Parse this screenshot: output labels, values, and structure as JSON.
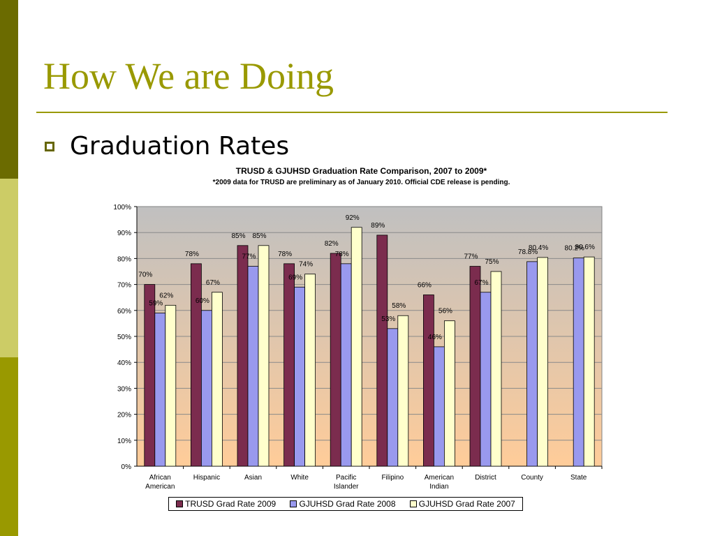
{
  "slide": {
    "title": "How We are Doing",
    "bullet": "Graduation Rates"
  },
  "colors": {
    "strip_top": "#6b6b00",
    "strip_mid": "#cccc66",
    "strip_bot": "#999900",
    "title": "#999900",
    "series": [
      "#7b2c4e",
      "#9999ee",
      "#ffffcc"
    ],
    "plot_gradient_top": "#c0c0c0",
    "plot_gradient_bottom": "#ffcc99"
  },
  "chart_data": {
    "type": "bar",
    "title": "TRUSD & GJUHSD Graduation Rate Comparison, 2007 to 2009*",
    "subtitle": "*2009 data for TRUSD are preliminary as of January 2010. Official CDE release is pending.",
    "categories": [
      [
        "African",
        "American"
      ],
      [
        "Hispanic"
      ],
      [
        "Asian"
      ],
      [
        "White"
      ],
      [
        "Pacific",
        "Islander"
      ],
      [
        "Filipino"
      ],
      [
        "American",
        "Indian"
      ],
      [
        "District"
      ],
      [
        "County"
      ],
      [
        "State"
      ]
    ],
    "ylim": [
      0,
      100
    ],
    "yticks": [
      "0%",
      "10%",
      "20%",
      "30%",
      "40%",
      "50%",
      "60%",
      "70%",
      "80%",
      "90%",
      "100%"
    ],
    "grid": true,
    "legend_position": "bottom",
    "series": [
      {
        "name": "TRUSD Grad Rate 2009",
        "values": [
          70,
          78,
          85,
          78,
          82,
          89,
          66,
          77,
          null,
          null
        ],
        "labels": [
          "70%",
          "78%",
          "85%",
          "78%",
          "82%",
          "89%",
          "66%",
          "77%",
          "",
          ""
        ]
      },
      {
        "name": "GJUHSD Grad Rate 2008",
        "values": [
          59,
          60,
          77,
          69,
          78,
          53,
          46,
          67,
          78.8,
          80.2
        ],
        "labels": [
          "59%",
          "60%",
          "77%",
          "69%",
          "78%",
          "53%",
          "46%",
          "67%",
          "78.8%",
          "80.2%"
        ]
      },
      {
        "name": "GJUHSD Grad Rate 2007",
        "values": [
          62,
          67,
          85,
          74,
          92,
          58,
          56,
          75,
          80.4,
          80.6
        ],
        "labels": [
          "62%",
          "67%",
          "85%",
          "74%",
          "92%",
          "58%",
          "56%",
          "75%",
          "80.4%",
          "80.6%"
        ]
      }
    ]
  }
}
